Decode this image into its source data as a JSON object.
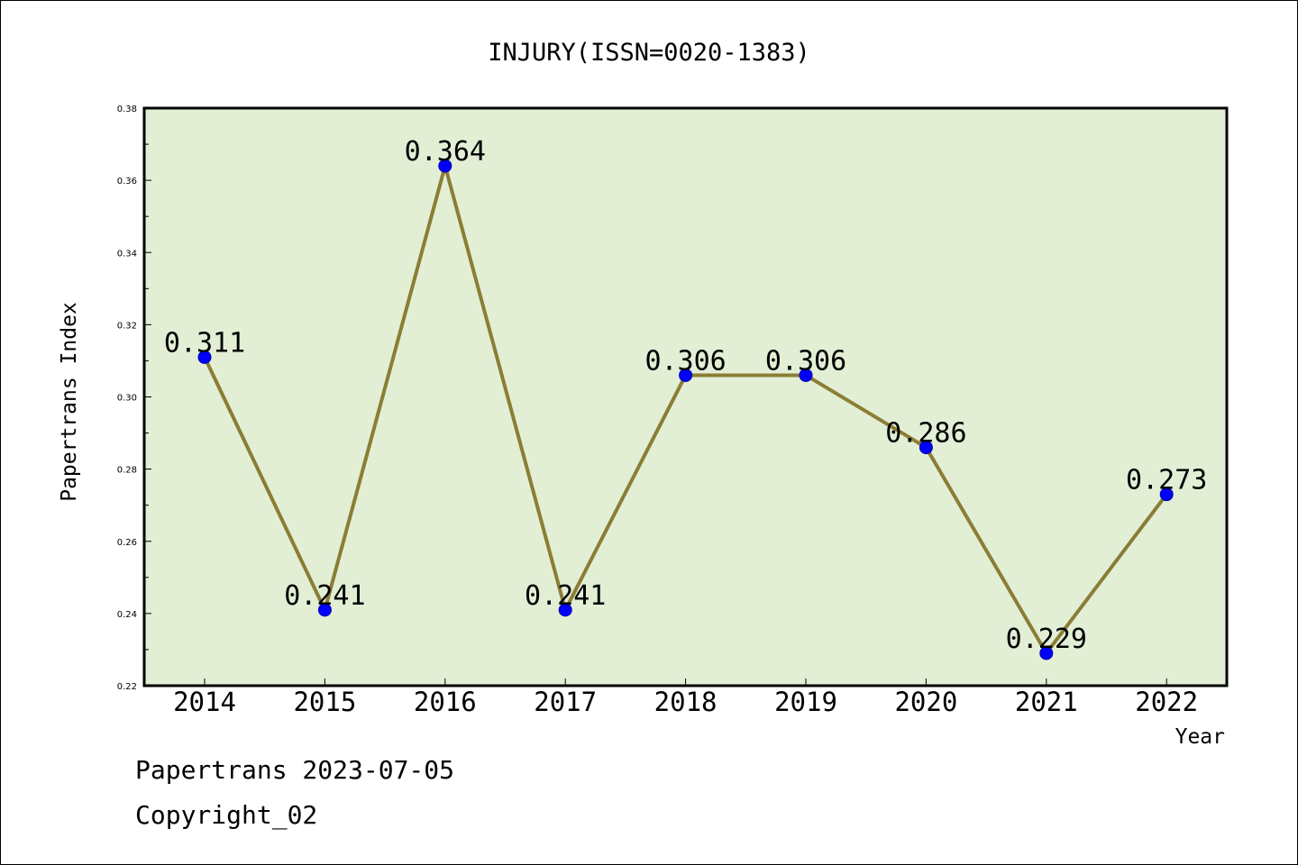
{
  "chart_data": {
    "type": "line",
    "title": "INJURY(ISSN=0020-1383)",
    "xlabel": "Year",
    "ylabel": "Papertrans Index",
    "categories": [
      "2014",
      "2015",
      "2016",
      "2017",
      "2018",
      "2019",
      "2020",
      "2021",
      "2022"
    ],
    "values": [
      0.311,
      0.241,
      0.364,
      0.241,
      0.306,
      0.306,
      0.286,
      0.229,
      0.273
    ],
    "data_labels": [
      "0.311",
      "0.241",
      "0.364",
      "0.241",
      "0.306",
      "0.306",
      "0.286",
      "0.229",
      "0.273"
    ],
    "ylim": [
      0.22,
      0.38
    ],
    "yticks": [
      0.22,
      0.24,
      0.26,
      0.28,
      0.3,
      0.32,
      0.34,
      0.36,
      0.38
    ],
    "ytick_labels": [
      "0.22",
      "0.24",
      "0.26",
      "0.28",
      "0.30",
      "0.32",
      "0.34",
      "0.36",
      "0.38"
    ],
    "grid": false,
    "line_color": "#8b7d35",
    "marker_color": "#0000ff",
    "plot_background": "#e2efd5"
  },
  "footer": {
    "date_line": "Papertrans 2023-07-05",
    "copyright": "Copyright_02"
  }
}
